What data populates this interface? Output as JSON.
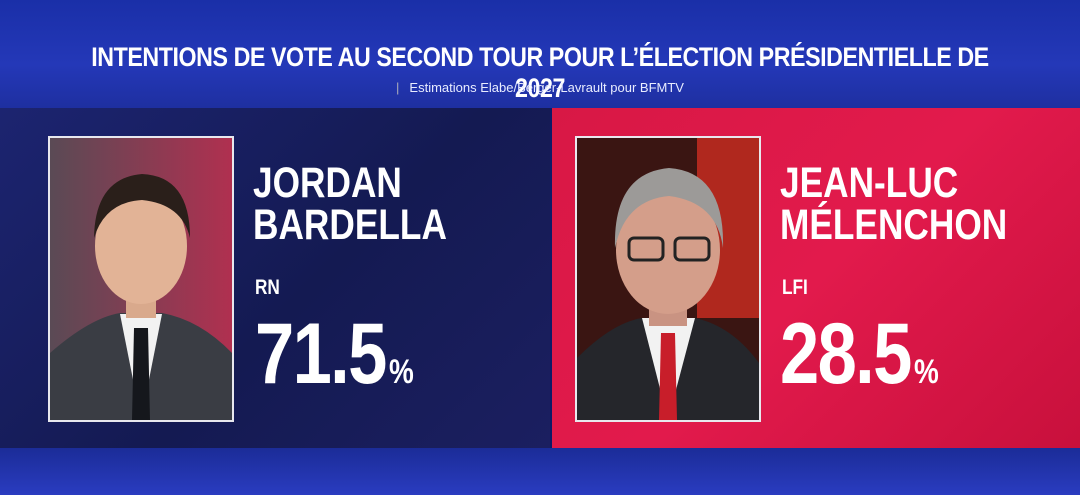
{
  "header": {
    "title": "INTENTIONS DE VOTE AU SECOND TOUR POUR L’ÉLECTION PRÉSIDENTIELLE DE 2027",
    "subtitle": "Estimations Elabe/Berger-Lavrault pour BFMTV"
  },
  "candidates": [
    {
      "name": [
        "JORDAN",
        "BARDELLA"
      ],
      "party": "RN",
      "score": 71.5,
      "unit": "%"
    },
    {
      "name": [
        "JEAN-LUC",
        "MÉLENCHON"
      ],
      "party": "LFI",
      "score": 28.5,
      "unit": "%"
    }
  ]
}
